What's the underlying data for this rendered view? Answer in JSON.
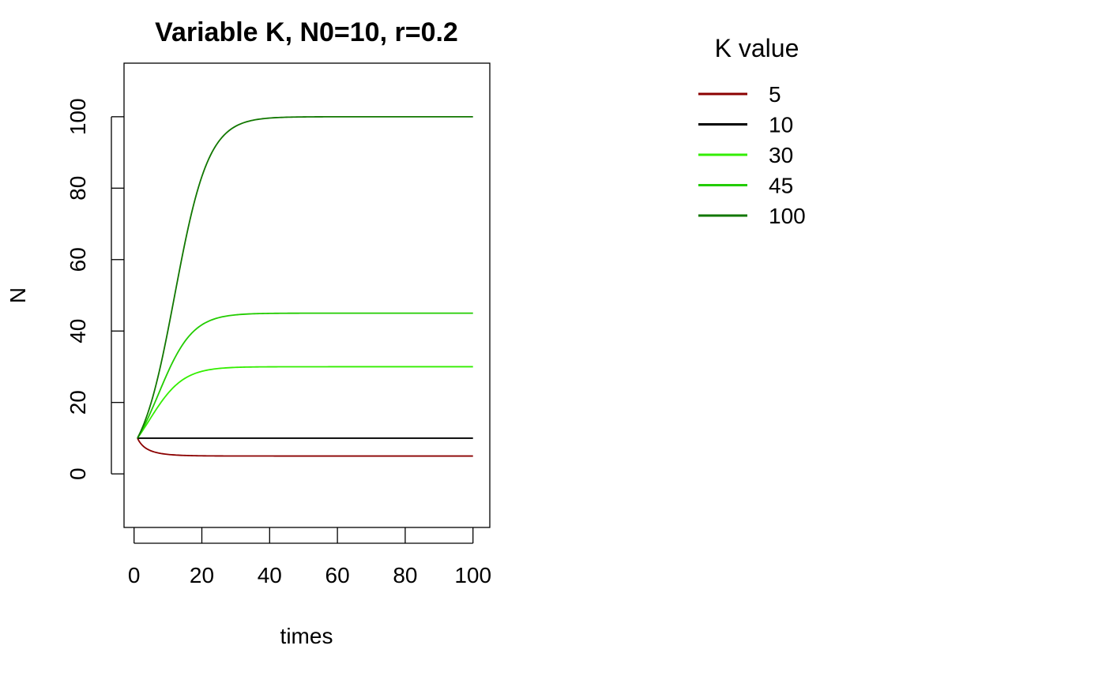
{
  "chart_data": {
    "type": "line",
    "title": "Variable K, N0=10, r=0.2",
    "xlabel": "times",
    "ylabel": "N",
    "xlim": [
      1,
      100
    ],
    "ylim": [
      -15,
      115
    ],
    "xticks": [
      "0",
      "20",
      "40",
      "60",
      "80",
      "100"
    ],
    "yticks": [
      "0",
      "20",
      "40",
      "60",
      "80",
      "100"
    ],
    "grid": false,
    "legend": {
      "title": "K value",
      "position": "top-right outside plot"
    },
    "model": {
      "N0": 10,
      "r": 0.2,
      "x_start": 1,
      "x_end": 100
    },
    "series": [
      {
        "name": "5",
        "K": 5,
        "color": "#8B0000"
      },
      {
        "name": "10",
        "K": 10,
        "color": "#000000"
      },
      {
        "name": "30",
        "K": 30,
        "color": "#33EE00"
      },
      {
        "name": "45",
        "K": 45,
        "color": "#22CC00"
      },
      {
        "name": "100",
        "K": 100,
        "color": "#117700"
      }
    ]
  }
}
